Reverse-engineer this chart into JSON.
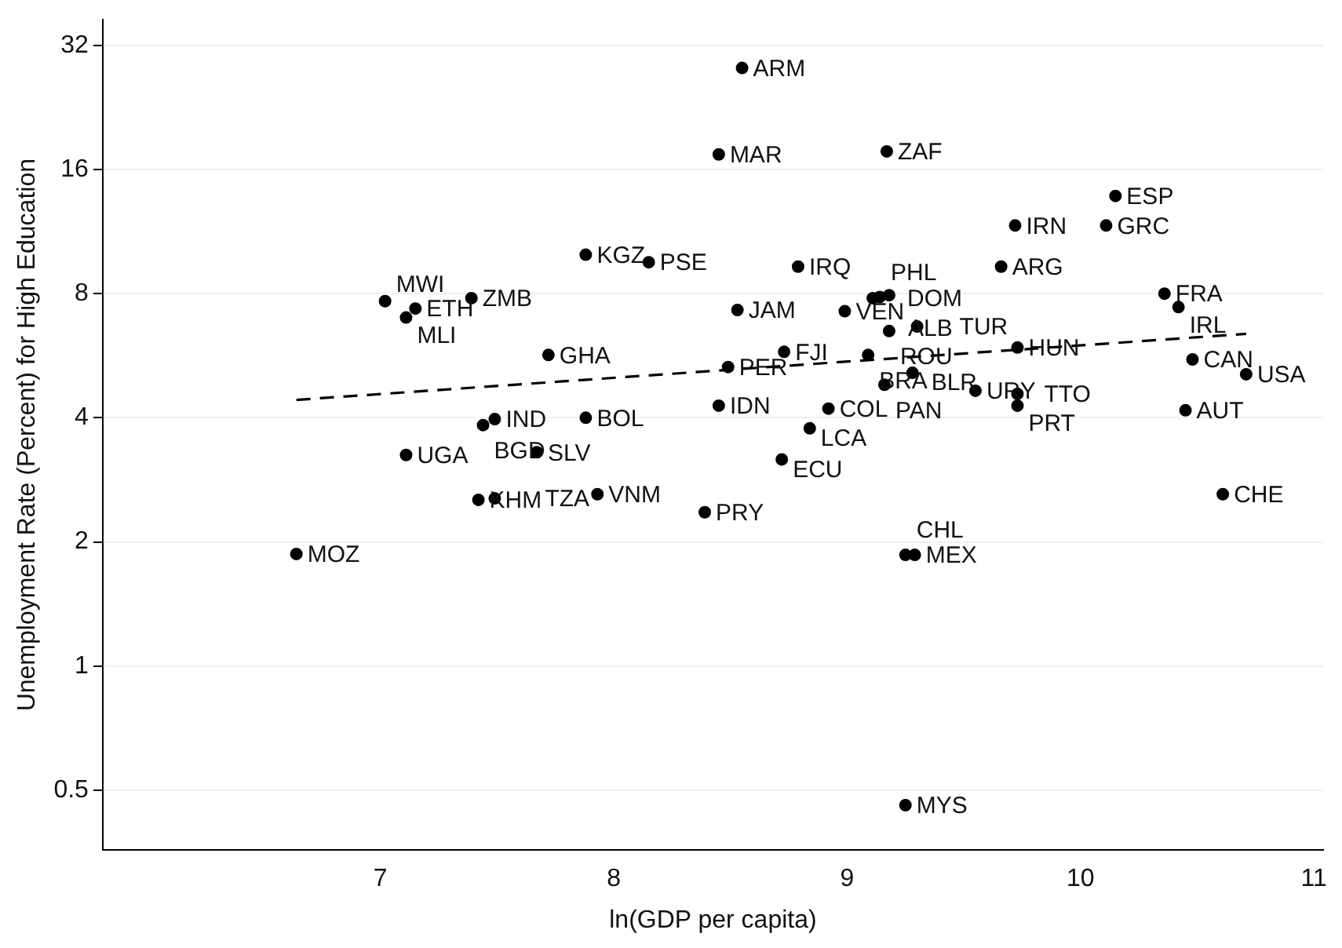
{
  "chart_data": {
    "type": "scatter",
    "xlabel": "ln(GDP per capita)",
    "ylabel": "Unemployment Rate (Percent) for High Education",
    "log": "y",
    "grid": "y",
    "legend": false,
    "marker": "circle",
    "xlim": [
      5.81,
      11.04
    ],
    "xticks": [
      7,
      8,
      9,
      10,
      11
    ],
    "ylim": [
      0.358,
      36.9
    ],
    "yticks": [
      0.5,
      1,
      2,
      4,
      8,
      16,
      32
    ],
    "series": [
      {
        "color": "#000000",
        "x": [
          8.55,
          8.45,
          9.17,
          10.15,
          9.72,
          10.11,
          9.66,
          8.79,
          7.88,
          8.15,
          10.36,
          10.42,
          8.53,
          8.99,
          9.11,
          9.14,
          9.18,
          9.18,
          9.3,
          9.73,
          8.73,
          9.09,
          8.49,
          7.72,
          9.28,
          9.16,
          9.55,
          9.73,
          9.73,
          10.48,
          10.71,
          10.45,
          10.61,
          8.45,
          8.92,
          8.84,
          8.72,
          8.39,
          9.29,
          9.25,
          9.25,
          6.64,
          7.15,
          7.02,
          7.39,
          7.11,
          7.49,
          7.44,
          7.88,
          7.11,
          7.67,
          7.42,
          7.49,
          7.93
        ],
        "values": [
          28.2,
          17.4,
          17.7,
          13.8,
          11.7,
          11.7,
          9.3,
          9.3,
          9.94,
          9.53,
          8.0,
          7.42,
          7.3,
          7.25,
          7.8,
          7.85,
          7.93,
          6.49,
          6.66,
          5.92,
          5.78,
          5.68,
          5.31,
          5.68,
          5.14,
          4.81,
          4.65,
          4.57,
          4.28,
          5.54,
          5.1,
          4.17,
          2.61,
          4.28,
          4.21,
          3.77,
          3.17,
          2.36,
          1.86,
          1.86,
          0.46,
          1.87,
          7.36,
          7.67,
          7.8,
          7.0,
          3.97,
          3.84,
          4.0,
          3.25,
          3.3,
          2.53,
          2.55,
          2.61
        ]
      },
      {
        "type": "line",
        "color": "#000000",
        "line_style": "dashed",
        "marker": "none",
        "x": [
          6.64,
          10.71
        ],
        "values": [
          4.42,
          6.39
        ]
      }
    ],
    "annotations": [
      {
        "text": "ARM",
        "x": 8.55,
        "y": 28.2
      },
      {
        "text": "MAR",
        "x": 8.45,
        "y": 17.4
      },
      {
        "text": "ZAF",
        "x": 9.17,
        "y": 17.7
      },
      {
        "text": "ESP",
        "x": 10.15,
        "y": 13.8
      },
      {
        "text": "IRN",
        "x": 9.72,
        "y": 11.7
      },
      {
        "text": "GRC",
        "x": 10.11,
        "y": 11.7
      },
      {
        "text": "ARG",
        "x": 9.66,
        "y": 9.3
      },
      {
        "text": "IRQ",
        "x": 8.79,
        "y": 9.3
      },
      {
        "text": "KGZ",
        "x": 7.88,
        "y": 9.94
      },
      {
        "text": "PSE",
        "x": 8.15,
        "y": 9.53
      },
      {
        "text": "FRA",
        "x": 10.36,
        "y": 8.0
      },
      {
        "text": "IRL",
        "x": 10.42,
        "y": 7.42
      },
      {
        "text": "JAM",
        "x": 8.53,
        "y": 7.3
      },
      {
        "text": "VEN",
        "x": 8.99,
        "y": 7.25
      },
      {
        "text": "DOM",
        "x": 9.11,
        "y": 7.8
      },
      {
        "text": "PHL",
        "x": 9.14,
        "y": 7.85
      },
      {
        "text": "ALB",
        "x": 9.18,
        "y": 7.93
      },
      {
        "text": "ROU",
        "x": 9.18,
        "y": 6.49
      },
      {
        "text": "TUR",
        "x": 9.3,
        "y": 6.66
      },
      {
        "text": "HUN",
        "x": 9.73,
        "y": 5.92
      },
      {
        "text": "FJI",
        "x": 8.73,
        "y": 5.78
      },
      {
        "text": "BRA",
        "x": 9.09,
        "y": 5.68
      },
      {
        "text": "PER",
        "x": 8.49,
        "y": 5.31
      },
      {
        "text": "GHA",
        "x": 7.72,
        "y": 5.68
      },
      {
        "text": "BLR",
        "x": 9.28,
        "y": 5.14
      },
      {
        "text": "PAN",
        "x": 9.16,
        "y": 4.81
      },
      {
        "text": "URY",
        "x": 9.55,
        "y": 4.65
      },
      {
        "text": "TTO",
        "x": 9.73,
        "y": 4.57
      },
      {
        "text": "PRT",
        "x": 9.73,
        "y": 4.28
      },
      {
        "text": "CAN",
        "x": 10.48,
        "y": 5.54
      },
      {
        "text": "USA",
        "x": 10.71,
        "y": 5.1
      },
      {
        "text": "AUT",
        "x": 10.45,
        "y": 4.17
      },
      {
        "text": "CHE",
        "x": 10.61,
        "y": 2.61
      },
      {
        "text": "IDN",
        "x": 8.45,
        "y": 4.28
      },
      {
        "text": "COL",
        "x": 8.92,
        "y": 4.21
      },
      {
        "text": "LCA",
        "x": 8.84,
        "y": 3.77
      },
      {
        "text": "ECU",
        "x": 8.72,
        "y": 3.17
      },
      {
        "text": "PRY",
        "x": 8.39,
        "y": 2.36
      },
      {
        "text": "MEX",
        "x": 9.29,
        "y": 1.86
      },
      {
        "text": "CHL",
        "x": 9.25,
        "y": 1.86
      },
      {
        "text": "MYS",
        "x": 9.25,
        "y": 0.46
      },
      {
        "text": "MOZ",
        "x": 6.64,
        "y": 1.87
      },
      {
        "text": "ETH",
        "x": 7.15,
        "y": 7.36
      },
      {
        "text": "MWI",
        "x": 7.02,
        "y": 7.67
      },
      {
        "text": "ZMB",
        "x": 7.39,
        "y": 7.8
      },
      {
        "text": "MLI",
        "x": 7.11,
        "y": 7.0
      },
      {
        "text": "IND",
        "x": 7.49,
        "y": 3.97
      },
      {
        "text": "BGD",
        "x": 7.44,
        "y": 3.84
      },
      {
        "text": "BOL",
        "x": 7.88,
        "y": 4.0
      },
      {
        "text": "UGA",
        "x": 7.11,
        "y": 3.25
      },
      {
        "text": "SLV",
        "x": 7.67,
        "y": 3.3
      },
      {
        "text": "KHM",
        "x": 7.42,
        "y": 2.53
      },
      {
        "text": "TZA",
        "x": 7.49,
        "y": 2.55
      },
      {
        "text": "VNM",
        "x": 7.93,
        "y": 2.61
      }
    ]
  }
}
